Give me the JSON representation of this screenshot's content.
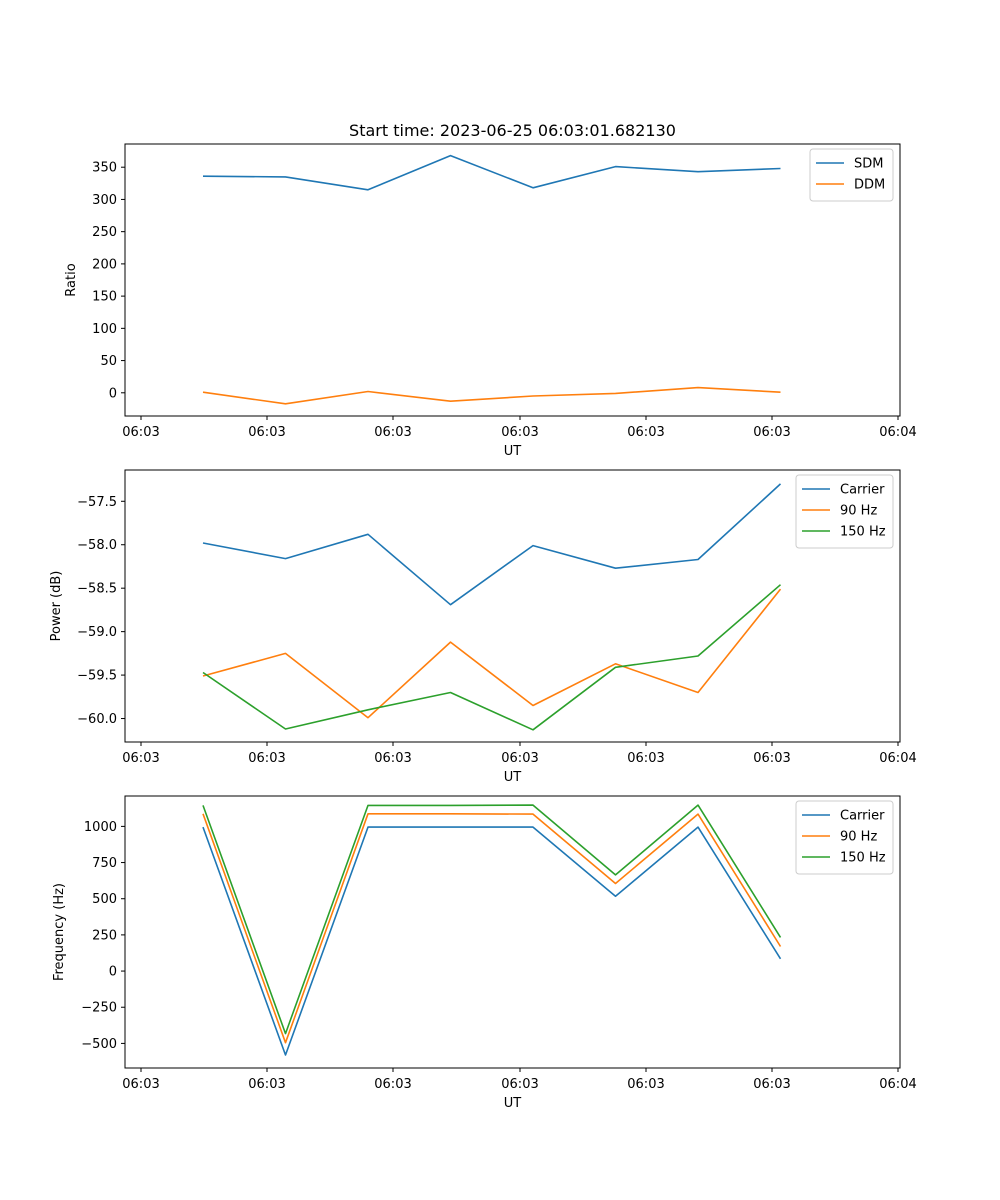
{
  "chart_data": [
    {
      "type": "line",
      "title": "Start time: 2023-06-25 06:03:01.682130",
      "xlabel": "UT",
      "ylabel": "Ratio",
      "x": [
        1,
        2,
        3,
        4,
        5,
        6,
        7,
        8
      ],
      "xtick_labels": [
        "06:03",
        "06:03",
        "06:03",
        "06:03",
        "06:03",
        "06:03",
        "06:04"
      ],
      "ylim": [
        -36,
        386
      ],
      "yticks": [
        0,
        50,
        100,
        150,
        200,
        250,
        300,
        350
      ],
      "grid": false,
      "legend": "top-right",
      "series": [
        {
          "name": "SDM",
          "color": "#1f77b4",
          "values": [
            336,
            335,
            315,
            368,
            318,
            351,
            343,
            348
          ]
        },
        {
          "name": "DDM",
          "color": "#ff7f0e",
          "values": [
            1,
            -17,
            2,
            -13,
            -5,
            -1,
            8,
            1
          ]
        }
      ]
    },
    {
      "type": "line",
      "title": "",
      "xlabel": "UT",
      "ylabel": "Power (dB)",
      "x": [
        1,
        2,
        3,
        4,
        5,
        6,
        7,
        8
      ],
      "xtick_labels": [
        "06:03",
        "06:03",
        "06:03",
        "06:03",
        "06:03",
        "06:03",
        "06:04"
      ],
      "ylim": [
        -60.27,
        -57.14
      ],
      "yticks": [
        -60.0,
        -59.5,
        -59.0,
        -58.5,
        -58.0,
        -57.5
      ],
      "ytick_labels": [
        "−60.0",
        "−59.5",
        "−59.0",
        "−58.5",
        "−58.0",
        "−57.5"
      ],
      "grid": false,
      "legend": "top-right",
      "series": [
        {
          "name": "Carrier",
          "color": "#1f77b4",
          "values": [
            -57.98,
            -58.16,
            -57.88,
            -58.69,
            -58.01,
            -58.27,
            -58.17,
            -57.3
          ]
        },
        {
          "name": "90 Hz",
          "color": "#ff7f0e",
          "values": [
            -59.51,
            -59.25,
            -59.99,
            -59.12,
            -59.85,
            -59.37,
            -59.7,
            -58.51
          ]
        },
        {
          "name": "150 Hz",
          "color": "#2ca02c",
          "values": [
            -59.47,
            -60.12,
            -59.9,
            -59.7,
            -60.13,
            -59.41,
            -59.28,
            -58.46
          ]
        }
      ]
    },
    {
      "type": "line",
      "title": "",
      "xlabel": "UT",
      "ylabel": "Frequency (Hz)",
      "x": [
        1,
        2,
        3,
        4,
        5,
        6,
        7,
        8
      ],
      "xtick_labels": [
        "06:03",
        "06:03",
        "06:03",
        "06:03",
        "06:03",
        "06:03",
        "06:04"
      ],
      "ylim": [
        -670,
        1210
      ],
      "yticks": [
        -500,
        -250,
        0,
        250,
        500,
        750,
        1000
      ],
      "ytick_labels": [
        "−500",
        "−250",
        "0",
        "250",
        "500",
        "750",
        "1000"
      ],
      "grid": false,
      "legend": "top-right",
      "series": [
        {
          "name": "Carrier",
          "color": "#1f77b4",
          "values": [
            995,
            -580,
            995,
            995,
            995,
            517,
            995,
            85
          ]
        },
        {
          "name": "90 Hz",
          "color": "#ff7f0e",
          "values": [
            1087,
            -495,
            1087,
            1087,
            1085,
            605,
            1085,
            170
          ]
        },
        {
          "name": "150 Hz",
          "color": "#2ca02c",
          "values": [
            1145,
            -432,
            1145,
            1145,
            1147,
            665,
            1147,
            233
          ]
        }
      ]
    }
  ]
}
